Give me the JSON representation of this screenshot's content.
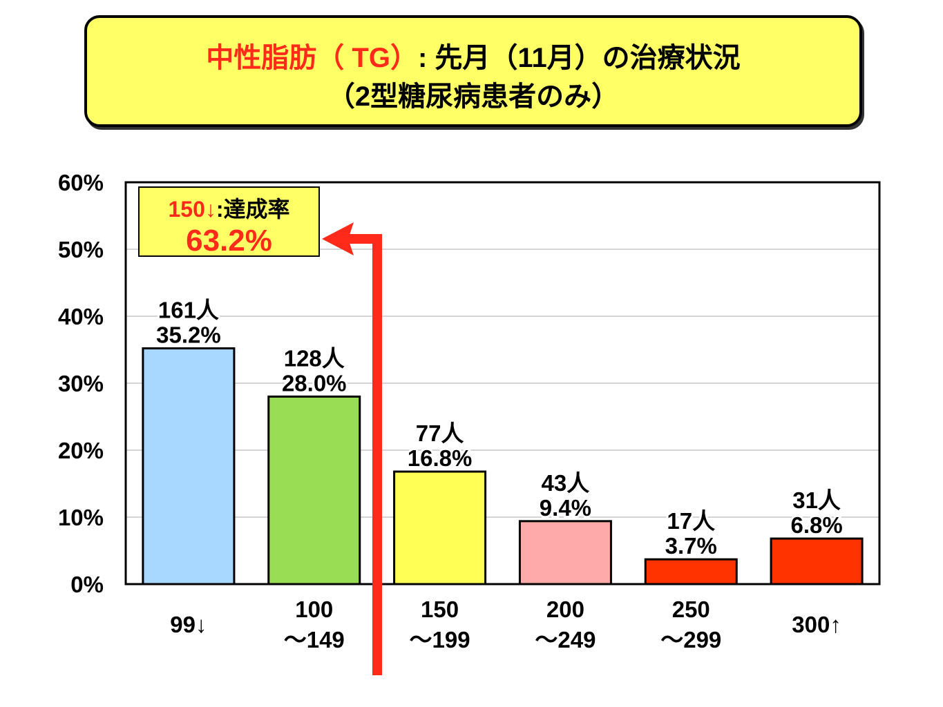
{
  "title": {
    "line1_red": "中性脂肪（ TG）",
    "line1_black": ": 先月（11月）の治療状況",
    "line2": "（2型糖尿病患者のみ）"
  },
  "annotation": {
    "label_red": "150↓",
    "label_black": ":達成率",
    "value": "63.2%"
  },
  "colors": {
    "accent": "#ff2a1a",
    "title_bg": "#ffff66"
  },
  "chart_data": {
    "type": "bar",
    "title": "中性脂肪（TG）: 先月（11月）の治療状況（2型糖尿病患者のみ）",
    "categories": [
      [
        "99↓"
      ],
      [
        "100",
        "～149"
      ],
      [
        "150",
        "～199"
      ],
      [
        "200",
        "～249"
      ],
      [
        "250",
        "～299"
      ],
      [
        "300↑"
      ]
    ],
    "values": [
      35.2,
      28.0,
      16.8,
      9.4,
      3.7,
      6.8
    ],
    "counts": [
      "161人",
      "128人",
      "77人",
      "43人",
      "17人",
      "31人"
    ],
    "value_labels": [
      "35.2%",
      "28.0%",
      "16.8%",
      "9.4%",
      "3.7%",
      "6.8%"
    ],
    "colors": [
      "#a8d8ff",
      "#99dd55",
      "#ffff55",
      "#ffaaaa",
      "#ff3300",
      "#ff3300"
    ],
    "ylim": [
      0,
      60
    ],
    "yticks": [
      "0%",
      "10%",
      "20%",
      "30%",
      "40%",
      "50%",
      "60%"
    ],
    "grid": true,
    "xlabel": "",
    "ylabel": ""
  }
}
